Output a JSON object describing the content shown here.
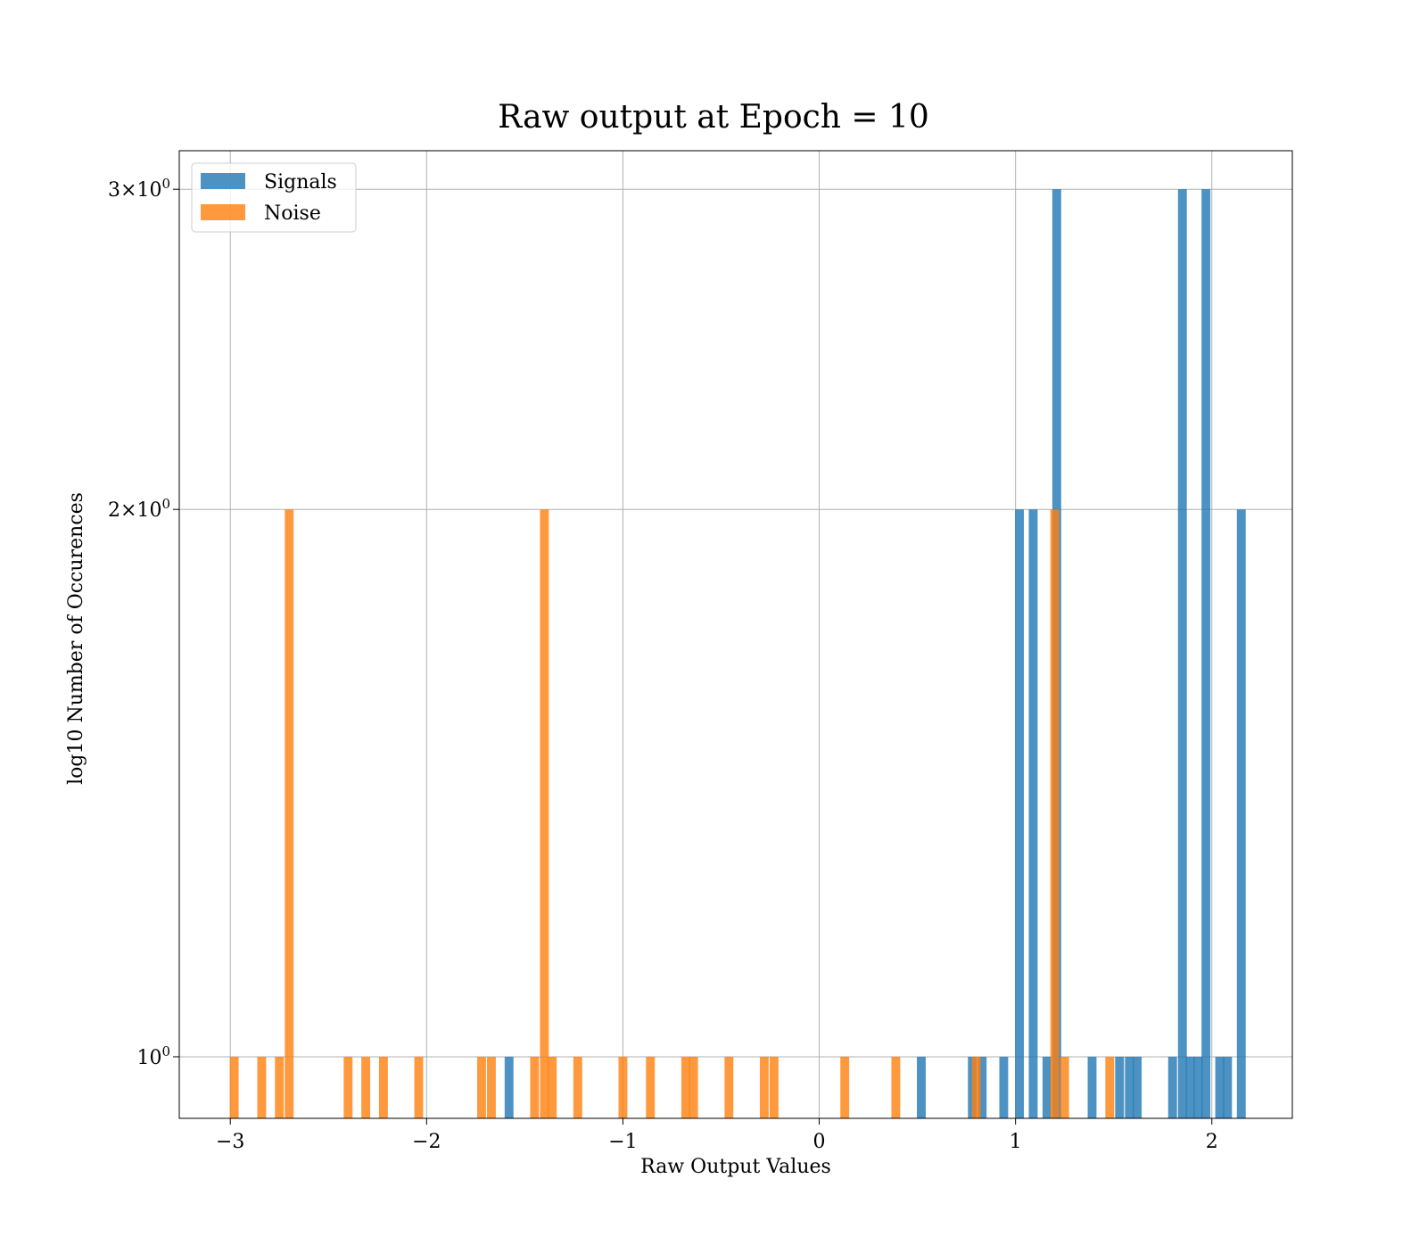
{
  "chart_data": {
    "type": "bar",
    "title": "Raw output at Epoch = 10",
    "xlabel": "Raw Output Values",
    "ylabel": "log10 Number of Occurences",
    "xlim": [
      -3.26,
      2.41
    ],
    "ylim": [
      0.925,
      3.15
    ],
    "yscale": "log",
    "grid": true,
    "legend_position": "top-left",
    "bin_width": 0.045,
    "x_ticks": [
      {
        "value": -3,
        "label": "−3"
      },
      {
        "value": -2,
        "label": "−2"
      },
      {
        "value": -1,
        "label": "−1"
      },
      {
        "value": 0,
        "label": "0"
      },
      {
        "value": 1,
        "label": "1"
      },
      {
        "value": 2,
        "label": "2"
      }
    ],
    "y_ticks": [
      {
        "value": 1,
        "base": "10",
        "exp": "0",
        "coef": ""
      },
      {
        "value": 2,
        "base": "10",
        "exp": "0",
        "coef": "2"
      },
      {
        "value": 3,
        "base": "10",
        "exp": "0",
        "coef": "3"
      }
    ],
    "series": [
      {
        "name": "Signals",
        "color": "#1f77b4",
        "opacity": 0.8,
        "bins": [
          {
            "x": -1.58,
            "count": 1
          },
          {
            "x": 0.52,
            "count": 1
          },
          {
            "x": 0.78,
            "count": 1
          },
          {
            "x": 0.83,
            "count": 1
          },
          {
            "x": 0.94,
            "count": 1
          },
          {
            "x": 1.02,
            "count": 2
          },
          {
            "x": 1.09,
            "count": 2
          },
          {
            "x": 1.16,
            "count": 1
          },
          {
            "x": 1.21,
            "count": 3
          },
          {
            "x": 1.39,
            "count": 1
          },
          {
            "x": 1.53,
            "count": 1
          },
          {
            "x": 1.58,
            "count": 1
          },
          {
            "x": 1.62,
            "count": 1
          },
          {
            "x": 1.8,
            "count": 1
          },
          {
            "x": 1.85,
            "count": 3
          },
          {
            "x": 1.89,
            "count": 1
          },
          {
            "x": 1.93,
            "count": 1
          },
          {
            "x": 1.97,
            "count": 3
          },
          {
            "x": 2.04,
            "count": 1
          },
          {
            "x": 2.08,
            "count": 1
          },
          {
            "x": 2.15,
            "count": 2
          }
        ]
      },
      {
        "name": "Noise",
        "color": "#ff7f0e",
        "opacity": 0.8,
        "bins": [
          {
            "x": -2.98,
            "count": 1
          },
          {
            "x": -2.84,
            "count": 1
          },
          {
            "x": -2.75,
            "count": 1
          },
          {
            "x": -2.7,
            "count": 2
          },
          {
            "x": -2.4,
            "count": 1
          },
          {
            "x": -2.31,
            "count": 1
          },
          {
            "x": -2.22,
            "count": 1
          },
          {
            "x": -2.04,
            "count": 1
          },
          {
            "x": -1.72,
            "count": 1
          },
          {
            "x": -1.67,
            "count": 1
          },
          {
            "x": -1.45,
            "count": 1
          },
          {
            "x": -1.4,
            "count": 2
          },
          {
            "x": -1.36,
            "count": 1
          },
          {
            "x": -1.23,
            "count": 1
          },
          {
            "x": -1.0,
            "count": 1
          },
          {
            "x": -0.86,
            "count": 1
          },
          {
            "x": -0.68,
            "count": 1
          },
          {
            "x": -0.64,
            "count": 1
          },
          {
            "x": -0.46,
            "count": 1
          },
          {
            "x": -0.28,
            "count": 1
          },
          {
            "x": -0.23,
            "count": 1
          },
          {
            "x": 0.13,
            "count": 1
          },
          {
            "x": 0.39,
            "count": 1
          },
          {
            "x": 0.8,
            "count": 1
          },
          {
            "x": 1.2,
            "count": 2
          },
          {
            "x": 1.25,
            "count": 1
          },
          {
            "x": 1.48,
            "count": 1
          }
        ]
      }
    ]
  }
}
